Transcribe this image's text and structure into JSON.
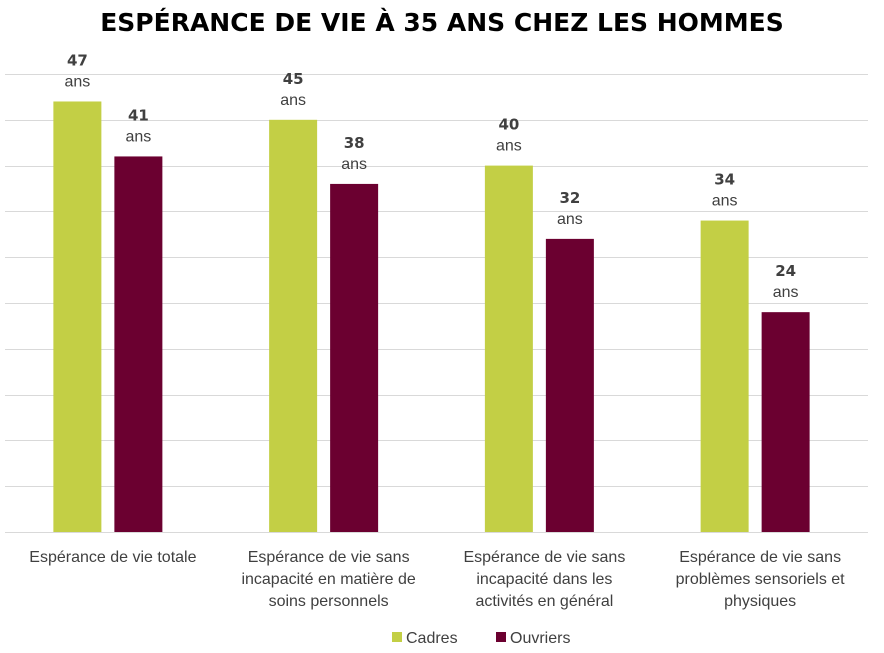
{
  "chart_data": {
    "type": "bar",
    "title": "ESPÉRANCE DE VIE À 35 ANS CHEZ LES HOMMES",
    "categories": [
      [
        "Espérance de vie totale"
      ],
      [
        "Espérance de vie sans",
        "incapacité en matière de",
        "soins personnels"
      ],
      [
        "Espérance de vie sans",
        "incapacité dans les",
        "activités en général"
      ],
      [
        "Espérance de vie sans",
        "problèmes sensoriels et",
        "physiques"
      ]
    ],
    "series": [
      {
        "name": "Cadres",
        "color": "#c3cf45",
        "values": [
          47,
          45,
          40,
          34
        ]
      },
      {
        "name": "Ouvriers",
        "color": "#6b0030",
        "values": [
          41,
          38,
          32,
          24
        ]
      }
    ],
    "value_unit": "ans",
    "ylim": [
      0,
      50
    ],
    "grid": true,
    "legend_position": "bottom-center",
    "xlabel": "",
    "ylabel": ""
  }
}
